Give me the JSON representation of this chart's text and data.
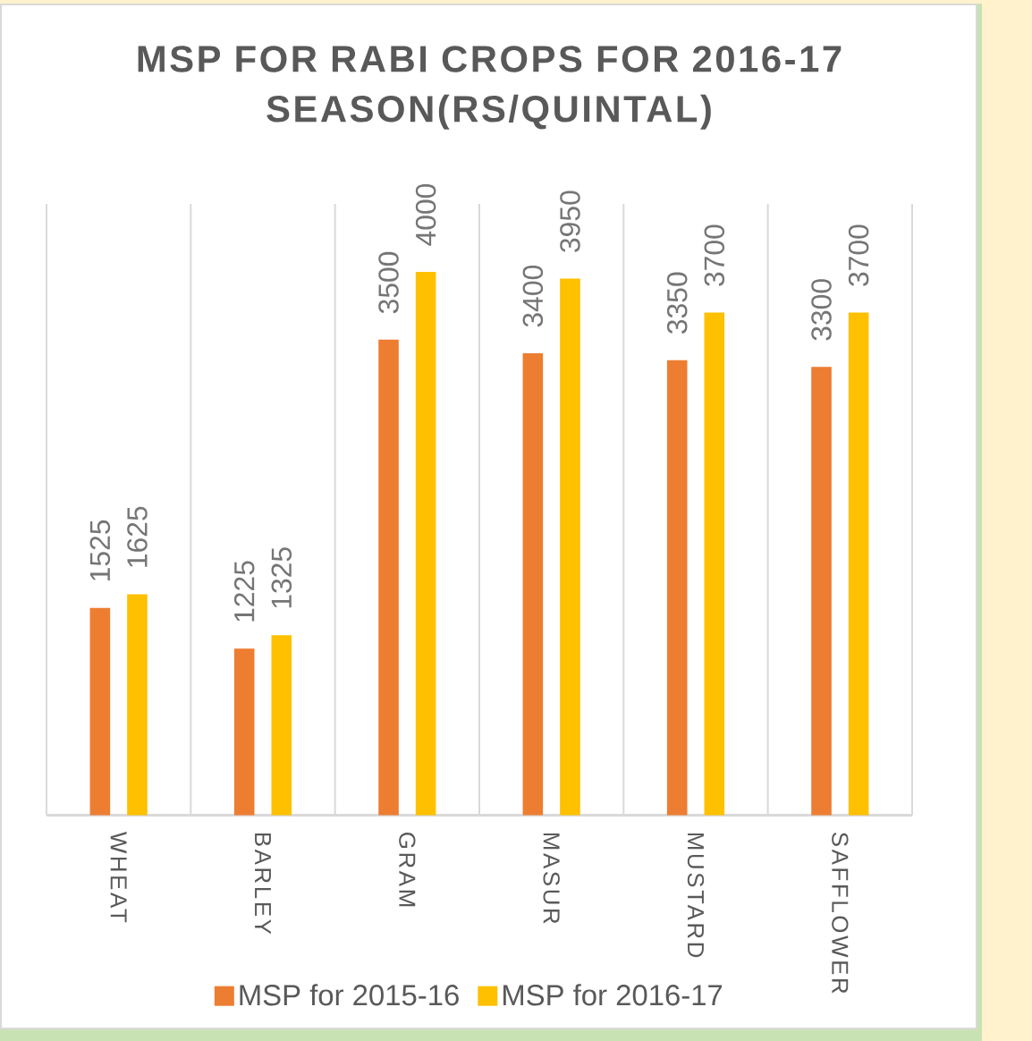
{
  "chart_data": {
    "type": "bar",
    "title": "MSP FOR RABI CROPS FOR 2016-17 SEASON(RS/QUINTAL)",
    "categories": [
      "WHEAT",
      "BARLEY",
      "GRAM",
      "MASUR",
      "MUSTARD",
      "SAFFLOWER"
    ],
    "series": [
      {
        "name": "MSP for 2015-16",
        "color": "#ed7d31",
        "values": [
          1525,
          1225,
          3500,
          3400,
          3350,
          3300
        ]
      },
      {
        "name": "MSP for 2016-17",
        "color": "#ffc000",
        "values": [
          1625,
          1325,
          4000,
          3950,
          3700,
          3700
        ]
      }
    ],
    "data_labels": true,
    "grid": "x",
    "legend": "bottom",
    "tick_labels": "x"
  }
}
